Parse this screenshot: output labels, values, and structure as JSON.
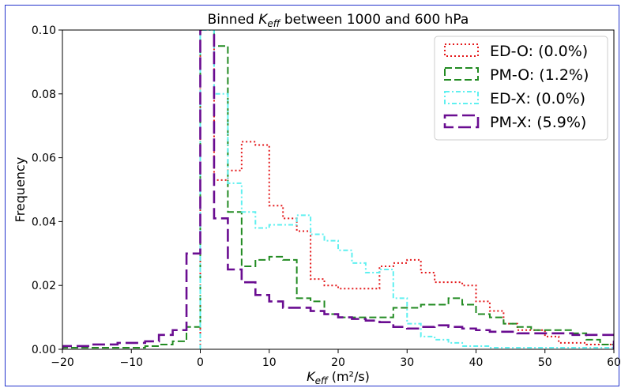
{
  "chart_data": {
    "type": "histogram-step",
    "title": "Binned K_eff between 1000 and 600 hPa",
    "title_parts": {
      "pre": "Binned ",
      "k": "K",
      "sub": "eff",
      "post": " between 1000 and 600 hPa"
    },
    "xlabel": "K_eff (m²/s)",
    "xlabel_parts": {
      "k": "K",
      "sub": "eff",
      "unit": " (m²/s)"
    },
    "ylabel": "Frequency",
    "xlim": [
      -20,
      60
    ],
    "ylim": [
      0,
      0.1
    ],
    "xticks": [
      -20,
      -10,
      0,
      10,
      20,
      30,
      40,
      50,
      60
    ],
    "xtick_labels": [
      "−20",
      "−10",
      "0",
      "10",
      "20",
      "30",
      "40",
      "50",
      "60"
    ],
    "yticks": [
      0,
      0.02,
      0.04,
      0.06,
      0.08,
      0.1
    ],
    "ytick_labels": [
      "0.00",
      "0.02",
      "0.04",
      "0.06",
      "0.08",
      "0.10"
    ],
    "legend_position": "top-right",
    "series": [
      {
        "name": "ED-O: (0.0%)",
        "color": "#e41a1c",
        "style": "dotted",
        "edges": [
          0,
          2,
          4,
          6,
          8,
          10,
          12,
          14,
          16,
          18,
          20,
          22,
          24,
          26,
          28,
          30,
          32,
          34,
          36,
          38,
          40,
          42,
          44,
          46,
          48,
          50,
          52,
          54,
          56,
          58,
          60
        ],
        "values": [
          0.1,
          0.053,
          0.056,
          0.065,
          0.064,
          0.045,
          0.041,
          0.037,
          0.022,
          0.02,
          0.019,
          0.019,
          0.019,
          0.026,
          0.027,
          0.028,
          0.024,
          0.021,
          0.021,
          0.02,
          0.015,
          0.012,
          0.008,
          0.006,
          0.006,
          0.004,
          0.002,
          0.002,
          0.0015,
          0.0015
        ]
      },
      {
        "name": "PM-O: (1.2%)",
        "color": "#228b22",
        "style": "dashed",
        "edges": [
          -20,
          -18,
          -16,
          -14,
          -12,
          -10,
          -8,
          -6,
          -4,
          -2,
          0,
          2,
          4,
          6,
          8,
          10,
          12,
          14,
          16,
          18,
          20,
          22,
          24,
          26,
          28,
          30,
          32,
          34,
          36,
          38,
          40,
          42,
          44,
          46,
          48,
          50,
          52,
          54,
          56,
          58,
          60
        ],
        "values": [
          0.0005,
          0.0005,
          0.0005,
          0.0005,
          0.0005,
          0.0005,
          0.001,
          0.0015,
          0.0025,
          0.007,
          0.11,
          0.095,
          0.043,
          0.026,
          0.028,
          0.029,
          0.028,
          0.016,
          0.015,
          0.011,
          0.01,
          0.01,
          0.01,
          0.01,
          0.013,
          0.013,
          0.014,
          0.014,
          0.016,
          0.014,
          0.011,
          0.01,
          0.008,
          0.007,
          0.006,
          0.006,
          0.006,
          0.005,
          0.003,
          0.0015
        ]
      },
      {
        "name": "ED-X: (0.0%)",
        "color": "#5ff0f0",
        "style": "dashdot",
        "edges": [
          0,
          2,
          4,
          6,
          8,
          10,
          12,
          14,
          16,
          18,
          20,
          22,
          24,
          26,
          28,
          30,
          32,
          34,
          36,
          38,
          40,
          42,
          44,
          46,
          48,
          50,
          52,
          54,
          56,
          58,
          60
        ],
        "values": [
          0.1,
          0.08,
          0.052,
          0.043,
          0.038,
          0.039,
          0.039,
          0.042,
          0.036,
          0.034,
          0.031,
          0.027,
          0.024,
          0.025,
          0.016,
          0.008,
          0.004,
          0.003,
          0.002,
          0.001,
          0.001,
          0.0005,
          0.0005,
          0.0005,
          0.0005,
          0.0005,
          0.0005,
          0.0005,
          0.0005,
          0.0005
        ]
      },
      {
        "name": "PM-X: (5.9%)",
        "color": "#6a0d91",
        "style": "longdash",
        "edges": [
          -20,
          -18,
          -16,
          -14,
          -12,
          -10,
          -8,
          -6,
          -4,
          -2,
          0,
          2,
          4,
          6,
          8,
          10,
          12,
          14,
          16,
          18,
          20,
          22,
          24,
          26,
          28,
          30,
          32,
          34,
          36,
          38,
          40,
          42,
          44,
          46,
          48,
          50,
          52,
          54,
          56,
          58,
          60
        ],
        "values": [
          0.001,
          0.001,
          0.0015,
          0.0015,
          0.002,
          0.002,
          0.0025,
          0.0045,
          0.006,
          0.03,
          0.11,
          0.041,
          0.025,
          0.021,
          0.017,
          0.015,
          0.013,
          0.013,
          0.012,
          0.011,
          0.01,
          0.0095,
          0.009,
          0.0085,
          0.007,
          0.0065,
          0.007,
          0.0075,
          0.007,
          0.0065,
          0.006,
          0.0055,
          0.0055,
          0.005,
          0.005,
          0.005,
          0.005,
          0.0045,
          0.0045,
          0.0045
        ]
      }
    ]
  }
}
